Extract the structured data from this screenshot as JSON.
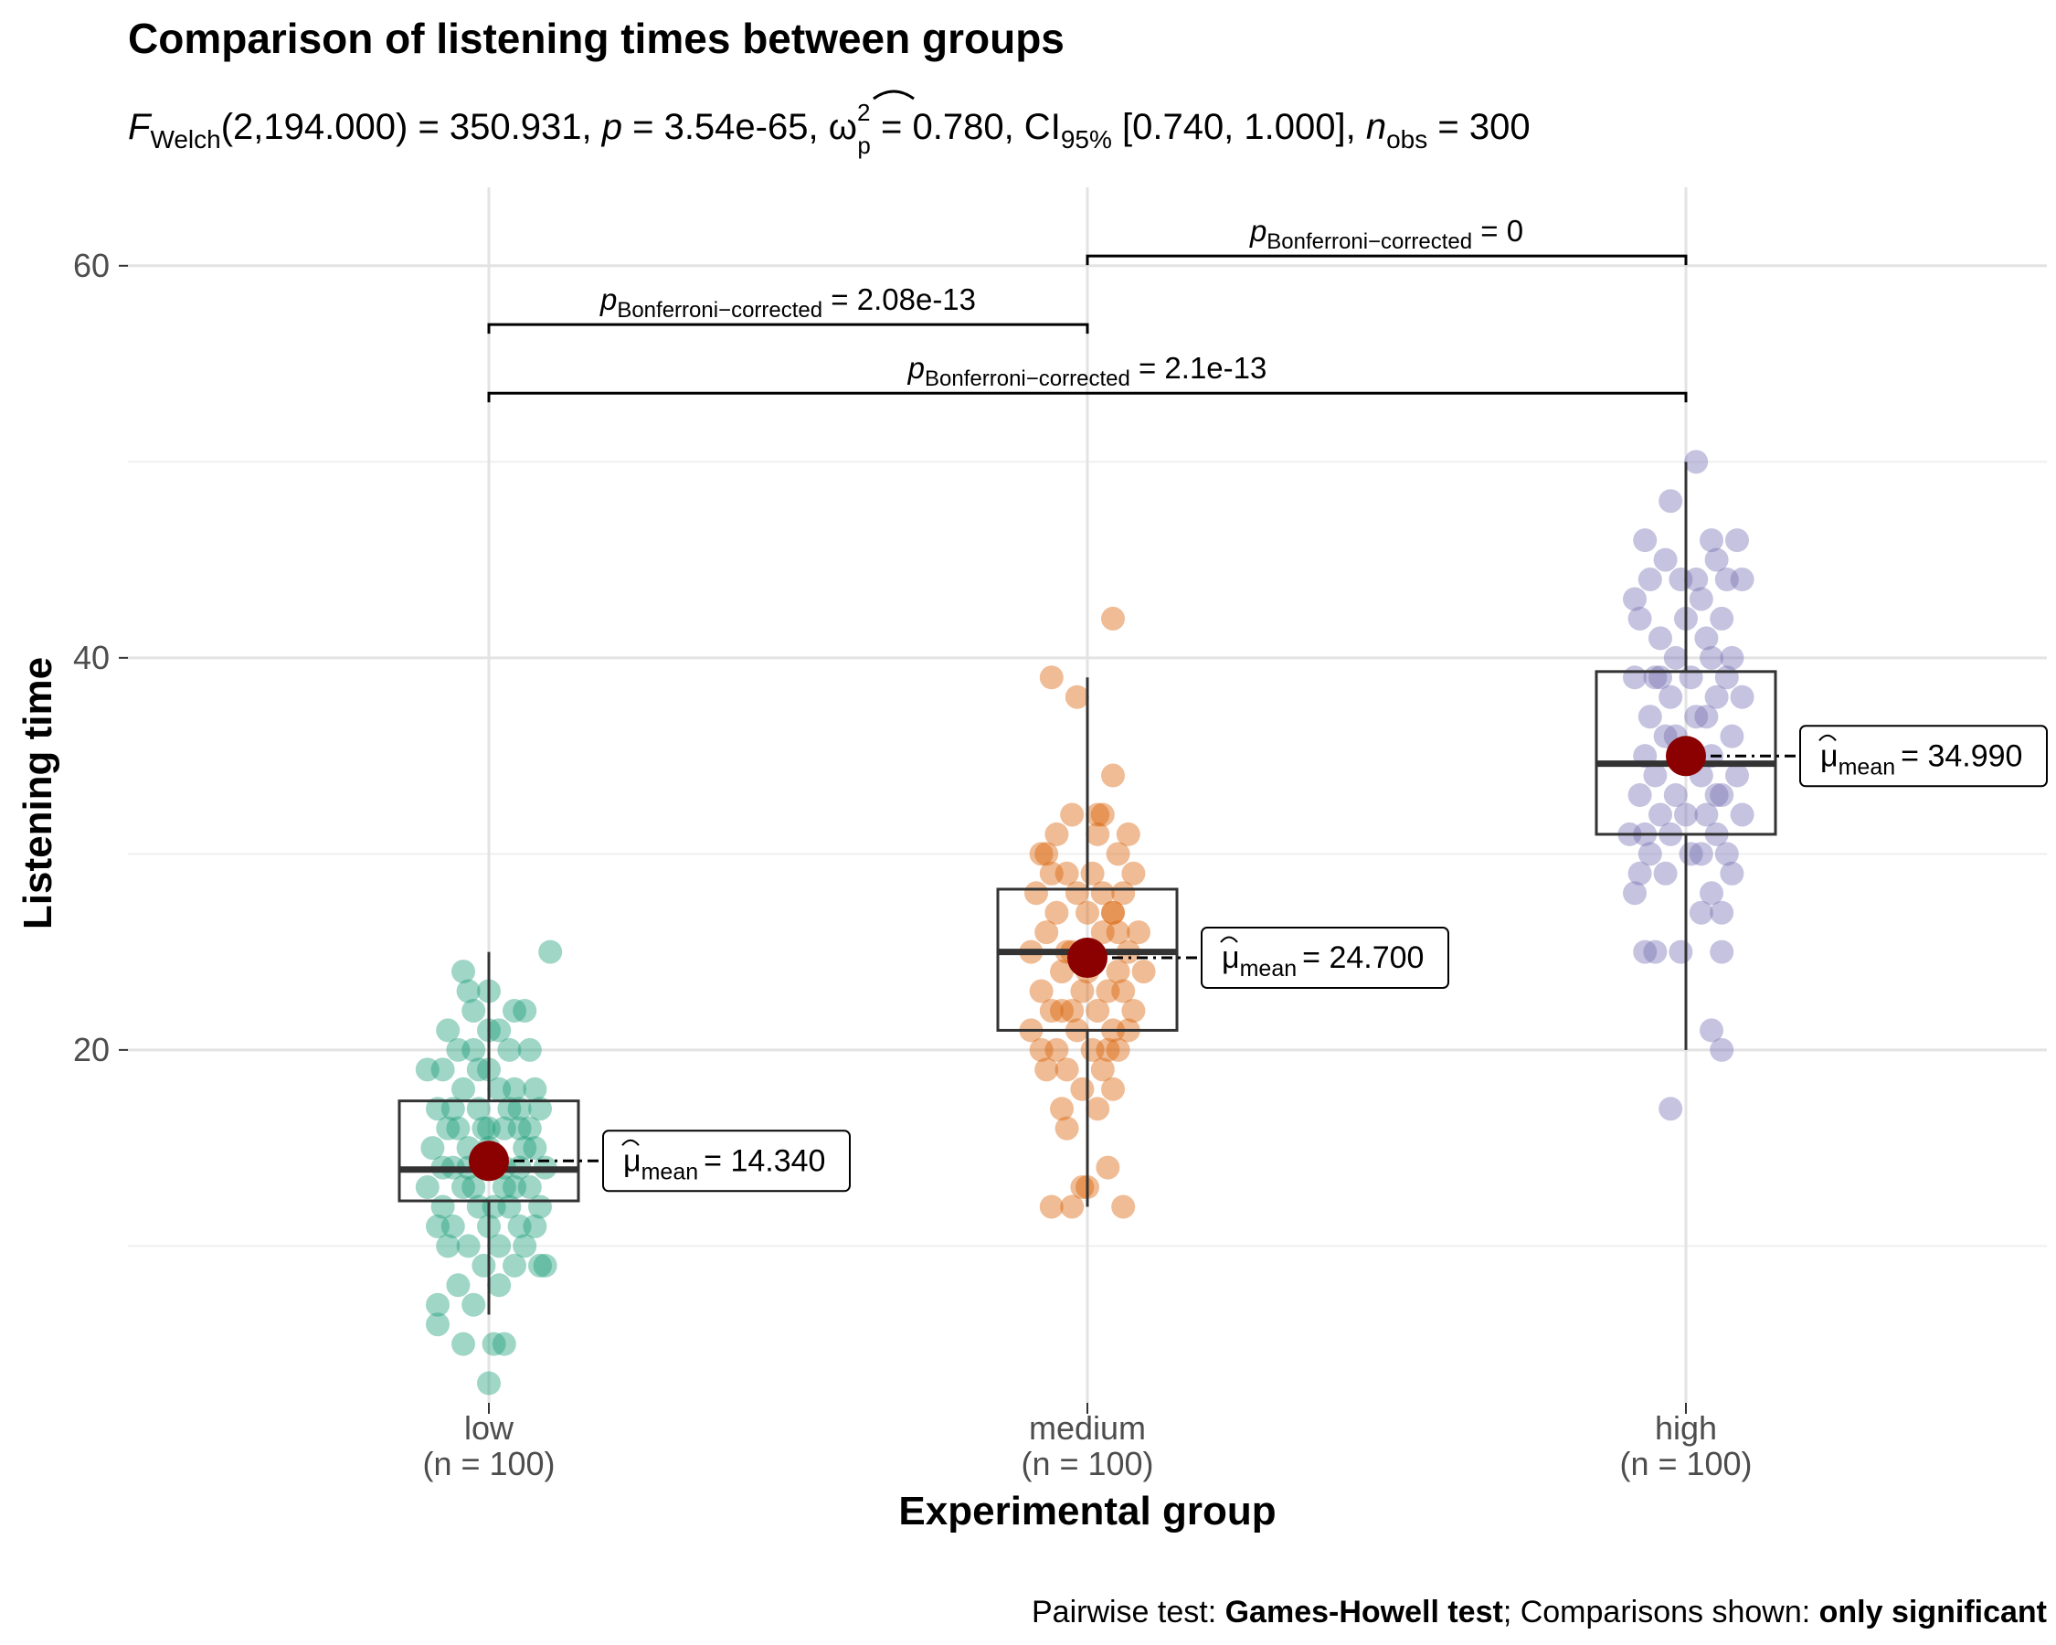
{
  "title": "Comparison of listening times between groups",
  "subtitle": {
    "stat_name": "F",
    "stat_sub": "Welch",
    "stat_args": "(2,194.000) = 350.931, ",
    "p_name": "p",
    "p_text": " = 3.54e-65, ",
    "effect_symbol": "ω",
    "effect_sup": "2",
    "effect_sub": "p",
    "effect_text": " = 0.780, CI",
    "ci_sub": "95%",
    "ci_text": " [0.740, 1.000], ",
    "n_name": "n",
    "n_sub": "obs",
    "n_text": " = 300"
  },
  "caption": {
    "prefix": "Pairwise test: ",
    "test": "Games-Howell test",
    "middle": "; Comparisons shown: ",
    "shown": "only significant"
  },
  "chart_data": {
    "type": "box-violin-scatter",
    "title": "Comparison of listening times between groups",
    "xlabel": "Experimental group",
    "ylabel": "Listening time",
    "ylim": [
      2,
      64
    ],
    "yticks": [
      20,
      40,
      60
    ],
    "grid": true,
    "categories": [
      "low\n(n = 100)",
      "medium\n(n = 100)",
      "high\n(n = 100)"
    ],
    "groups": [
      {
        "name": "low",
        "n_label": "(n = 100)",
        "color": "#1B9E77",
        "box": {
          "q1": 12.3,
          "median": 13.9,
          "q3": 17.4,
          "whisker_low": 6.5,
          "whisker_high": 25
        },
        "mean": 14.34,
        "mean_label_prefix": "μ",
        "mean_label_sub": "mean",
        "mean_label_value": "= 14.340",
        "points": [
          [
            -0.05,
            24
          ],
          [
            0.0,
            23
          ],
          [
            0.12,
            25
          ],
          [
            0.05,
            22
          ],
          [
            -0.03,
            22
          ],
          [
            0.07,
            22
          ],
          [
            -0.08,
            21
          ],
          [
            0.0,
            21
          ],
          [
            -0.06,
            20
          ],
          [
            0.04,
            20
          ],
          [
            -0.03,
            20
          ],
          [
            0.08,
            20
          ],
          [
            -0.12,
            19
          ],
          [
            -0.09,
            19
          ],
          [
            0.0,
            19
          ],
          [
            0.05,
            18
          ],
          [
            0.02,
            18
          ],
          [
            -0.05,
            18
          ],
          [
            0.1,
            17
          ],
          [
            -0.02,
            17
          ],
          [
            0.04,
            17
          ],
          [
            -0.1,
            17
          ],
          [
            0.06,
            17
          ],
          [
            -0.08,
            16
          ],
          [
            -0.01,
            16
          ],
          [
            0.06,
            16
          ],
          [
            -0.06,
            16
          ],
          [
            0.03,
            16
          ],
          [
            -0.11,
            15
          ],
          [
            0.0,
            15
          ],
          [
            0.07,
            15
          ],
          [
            -0.04,
            15
          ],
          [
            0.09,
            15
          ],
          [
            -0.09,
            14
          ],
          [
            0.03,
            14
          ],
          [
            -0.01,
            14
          ],
          [
            0.11,
            14
          ],
          [
            -0.07,
            14
          ],
          [
            0.05,
            13
          ],
          [
            -0.03,
            13
          ],
          [
            0.08,
            13
          ],
          [
            -0.12,
            13
          ],
          [
            -0.05,
            13
          ],
          [
            0.01,
            12
          ],
          [
            0.1,
            12
          ],
          [
            -0.09,
            12
          ],
          [
            0.04,
            12
          ],
          [
            -0.02,
            12
          ],
          [
            0.06,
            11
          ],
          [
            -0.07,
            11
          ],
          [
            0.0,
            11
          ],
          [
            -0.1,
            11
          ],
          [
            0.09,
            11
          ],
          [
            0.02,
            10
          ],
          [
            -0.04,
            10
          ],
          [
            0.07,
            10
          ],
          [
            -0.08,
            10
          ],
          [
            0.1,
            9
          ],
          [
            -0.01,
            9
          ],
          [
            0.05,
            9
          ],
          [
            0.11,
            9
          ],
          [
            -0.06,
            8
          ],
          [
            0.02,
            8
          ],
          [
            -0.1,
            7
          ],
          [
            -0.03,
            7
          ],
          [
            -0.1,
            6
          ],
          [
            -0.05,
            5
          ],
          [
            0.01,
            5
          ],
          [
            0.03,
            5
          ],
          [
            0.0,
            3
          ],
          [
            -0.04,
            23
          ],
          [
            0.02,
            21
          ],
          [
            -0.07,
            17
          ],
          [
            0.08,
            16
          ],
          [
            0.0,
            16
          ],
          [
            -0.04,
            14
          ],
          [
            0.06,
            14
          ],
          [
            0.09,
            18
          ],
          [
            -0.02,
            19
          ],
          [
            0.03,
            13
          ]
        ]
      },
      {
        "name": "medium",
        "n_label": "(n = 100)",
        "color": "#D95F02",
        "box": {
          "q1": 21,
          "median": 25,
          "q3": 28.2,
          "whisker_low": 12,
          "whisker_high": 39
        },
        "mean": 24.7,
        "mean_label_prefix": "μ",
        "mean_label_sub": "mean",
        "mean_label_value": "= 24.700",
        "points": [
          [
            0.05,
            42
          ],
          [
            -0.07,
            39
          ],
          [
            -0.02,
            38
          ],
          [
            0.05,
            34
          ],
          [
            -0.03,
            32
          ],
          [
            0.03,
            32
          ],
          [
            0.08,
            31
          ],
          [
            -0.06,
            31
          ],
          [
            0.02,
            31
          ],
          [
            -0.09,
            30
          ],
          [
            0.06,
            30
          ],
          [
            -0.04,
            29
          ],
          [
            0.01,
            29
          ],
          [
            0.09,
            29
          ],
          [
            -0.07,
            29
          ],
          [
            0.03,
            28
          ],
          [
            -0.1,
            28
          ],
          [
            0.07,
            28
          ],
          [
            -0.02,
            28
          ],
          [
            0.05,
            27
          ],
          [
            -0.06,
            27
          ],
          [
            0.0,
            27
          ],
          [
            0.1,
            26
          ],
          [
            -0.08,
            26
          ],
          [
            0.03,
            26
          ],
          [
            -0.04,
            25
          ],
          [
            0.08,
            25
          ],
          [
            -0.11,
            25
          ],
          [
            0.0,
            25
          ],
          [
            0.06,
            24
          ],
          [
            -0.05,
            24
          ],
          [
            0.11,
            24
          ],
          [
            -0.01,
            23
          ],
          [
            0.07,
            23
          ],
          [
            -0.09,
            23
          ],
          [
            0.04,
            23
          ],
          [
            -0.03,
            22
          ],
          [
            0.09,
            22
          ],
          [
            -0.07,
            22
          ],
          [
            0.02,
            22
          ],
          [
            -0.11,
            21
          ],
          [
            0.05,
            21
          ],
          [
            -0.02,
            21
          ],
          [
            0.08,
            21
          ],
          [
            -0.06,
            20
          ],
          [
            0.01,
            20
          ],
          [
            0.06,
            20
          ],
          [
            -0.09,
            20
          ],
          [
            0.03,
            19
          ],
          [
            -0.04,
            19
          ],
          [
            -0.08,
            19
          ],
          [
            0.05,
            18
          ],
          [
            -0.01,
            18
          ],
          [
            0.02,
            17
          ],
          [
            -0.05,
            17
          ],
          [
            -0.04,
            16
          ],
          [
            0.04,
            14
          ],
          [
            -0.01,
            13
          ],
          [
            0.0,
            13
          ],
          [
            -0.07,
            12
          ],
          [
            -0.03,
            12
          ],
          [
            0.07,
            12
          ],
          [
            0.02,
            32
          ],
          [
            -0.08,
            30
          ],
          [
            0.06,
            26
          ],
          [
            -0.05,
            22
          ],
          [
            0.04,
            20
          ],
          [
            0.0,
            24
          ],
          [
            -0.03,
            25
          ],
          [
            0.05,
            27
          ]
        ]
      },
      {
        "name": "high",
        "n_label": "(n = 100)",
        "color": "#7570B3",
        "box": {
          "q1": 31,
          "median": 34.6,
          "q3": 39.3,
          "whisker_low": 20,
          "whisker_high": 50
        },
        "mean": 34.99,
        "mean_label_prefix": "μ",
        "mean_label_sub": "mean",
        "mean_label_value": "= 34.990",
        "points": [
          [
            0.02,
            50
          ],
          [
            -0.03,
            48
          ],
          [
            -0.08,
            46
          ],
          [
            0.05,
            46
          ],
          [
            0.1,
            46
          ],
          [
            0.06,
            45
          ],
          [
            -0.04,
            45
          ],
          [
            -0.01,
            44
          ],
          [
            0.08,
            44
          ],
          [
            0.11,
            44
          ],
          [
            -0.07,
            44
          ],
          [
            0.03,
            43
          ],
          [
            -0.1,
            43
          ],
          [
            0.0,
            42
          ],
          [
            -0.09,
            42
          ],
          [
            0.07,
            42
          ],
          [
            -0.05,
            41
          ],
          [
            0.04,
            41
          ],
          [
            0.09,
            40
          ],
          [
            -0.02,
            40
          ],
          [
            0.05,
            40
          ],
          [
            -0.06,
            39
          ],
          [
            0.01,
            39
          ],
          [
            0.08,
            39
          ],
          [
            -0.1,
            39
          ],
          [
            -0.03,
            38
          ],
          [
            0.06,
            38
          ],
          [
            0.11,
            38
          ],
          [
            -0.07,
            37
          ],
          [
            0.02,
            37
          ],
          [
            -0.04,
            36
          ],
          [
            0.09,
            36
          ],
          [
            -0.01,
            35
          ],
          [
            0.05,
            35
          ],
          [
            -0.08,
            35
          ],
          [
            0.03,
            34
          ],
          [
            -0.06,
            34
          ],
          [
            0.1,
            34
          ],
          [
            -0.02,
            33
          ],
          [
            0.07,
            33
          ],
          [
            -0.09,
            33
          ],
          [
            0.0,
            32
          ],
          [
            0.04,
            32
          ],
          [
            -0.05,
            32
          ],
          [
            0.11,
            32
          ],
          [
            -0.11,
            31
          ],
          [
            0.06,
            31
          ],
          [
            -0.03,
            31
          ],
          [
            0.08,
            30
          ],
          [
            -0.07,
            30
          ],
          [
            0.01,
            30
          ],
          [
            -0.04,
            29
          ],
          [
            0.09,
            29
          ],
          [
            -0.09,
            29
          ],
          [
            0.05,
            28
          ],
          [
            -0.1,
            28
          ],
          [
            0.03,
            27
          ],
          [
            0.07,
            27
          ],
          [
            -0.06,
            25
          ],
          [
            -0.01,
            25
          ],
          [
            0.07,
            25
          ],
          [
            -0.08,
            25
          ],
          [
            0.05,
            21
          ],
          [
            0.07,
            20
          ],
          [
            -0.03,
            17
          ],
          [
            0.02,
            44
          ],
          [
            -0.05,
            39
          ],
          [
            0.04,
            37
          ],
          [
            -0.02,
            36
          ],
          [
            0.06,
            33
          ],
          [
            -0.08,
            31
          ],
          [
            0.03,
            30
          ]
        ]
      }
    ],
    "comparisons": [
      {
        "from": 0,
        "to": 1,
        "y": 57,
        "p_name": "p",
        "p_sub": "Bonferroni−corrected",
        "p_value": " = 2.08e-13"
      },
      {
        "from": 0,
        "to": 2,
        "y": 53.5,
        "p_name": "p",
        "p_sub": "Bonferroni−corrected",
        "p_value": " = 2.1e-13"
      },
      {
        "from": 1,
        "to": 2,
        "y": 60.5,
        "p_name": "p",
        "p_sub": "Bonferroni−corrected",
        "p_value": " = 0"
      }
    ],
    "mean_point_color": "#8B0000"
  }
}
